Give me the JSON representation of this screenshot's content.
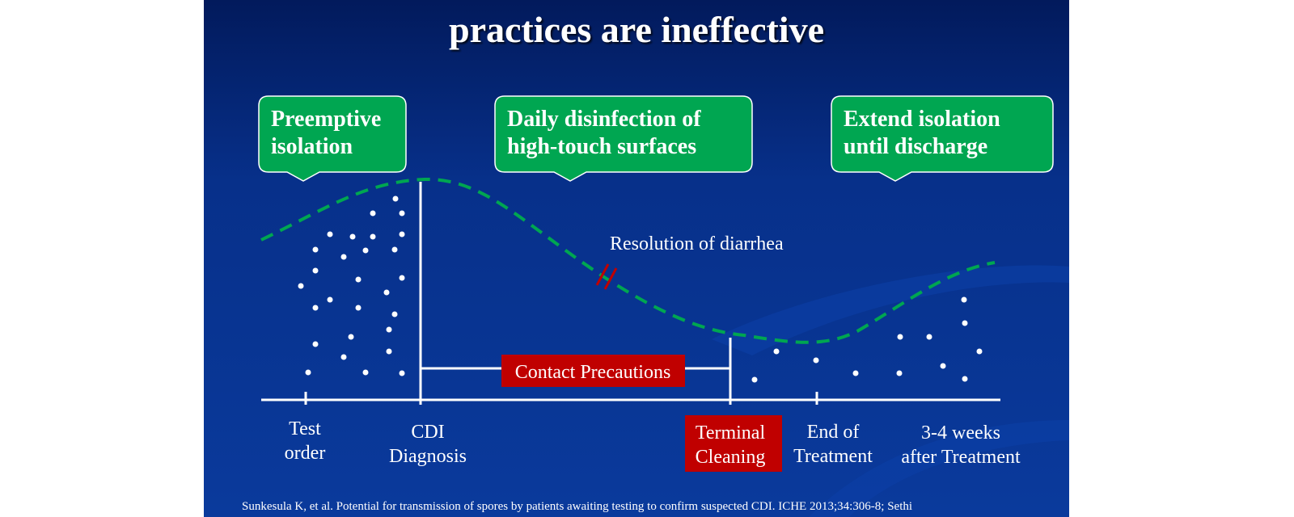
{
  "title": "practices are  ineffective",
  "callouts": [
    {
      "lines": [
        "Preemptive",
        "isolation"
      ]
    },
    {
      "lines": [
        "Daily disinfection of",
        "high-touch surfaces"
      ]
    },
    {
      "lines": [
        "Extend isolation",
        "until discharge"
      ]
    }
  ],
  "resolution_label": "Resolution of diarrhea",
  "contact_label": "Contact Precautions",
  "timeline": [
    {
      "lines": [
        "Test",
        "order"
      ]
    },
    {
      "lines": [
        "CDI",
        "Diagnosis"
      ]
    },
    {
      "lines": [
        "Terminal",
        "Cleaning"
      ]
    },
    {
      "lines": [
        "End of",
        "Treatment"
      ]
    },
    {
      "lines": [
        "3-4 weeks",
        "after Treatment"
      ]
    }
  ],
  "footer": "Sunkesula K, et al. Potential for transmission of spores by patients awaiting testing to confirm suspected CDI. ICHE 2013;34:306-8; Sethi"
}
